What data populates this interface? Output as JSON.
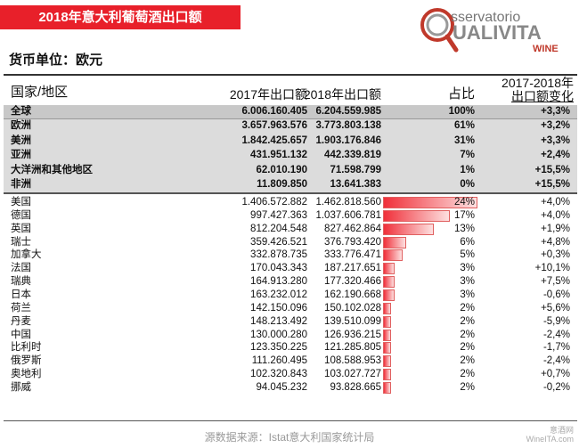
{
  "title": "2018年意大利葡萄酒出口额",
  "logo": {
    "line1": "sservatorio",
    "line2": "UALIVITA",
    "line3": "WINE",
    "accent": "#c0392b"
  },
  "unit": "货币单位：欧元",
  "headers": {
    "region": "国家/地区",
    "y2017": "2017年出口额",
    "y2018": "2018年出口额",
    "share": "占比",
    "change1": "2017-2018年",
    "change2": "出口额变化"
  },
  "regions": [
    {
      "name": "全球",
      "v2017": "6.006.160.405",
      "v2018": "6.204.559.985",
      "share": "100%",
      "change": "+3,3%"
    },
    {
      "name": "欧洲",
      "v2017": "3.657.963.576",
      "v2018": "3.773.803.138",
      "share": "61%",
      "change": "+3,2%"
    },
    {
      "name": "美洲",
      "v2017": "1.842.425.657",
      "v2018": "1.903.176.846",
      "share": "31%",
      "change": "+3,3%"
    },
    {
      "name": "亚洲",
      "v2017": "431.951.132",
      "v2018": "442.339.819",
      "share": "7%",
      "change": "+2,4%"
    },
    {
      "name": "大洋洲和其他地区",
      "v2017": "62.010.190",
      "v2018": "71.598.799",
      "share": "1%",
      "change": "+15,5%"
    },
    {
      "name": "非洲",
      "v2017": "11.809.850",
      "v2018": "13.641.383",
      "share": "0%",
      "change": "+15,5%"
    }
  ],
  "countries": [
    {
      "name": "美国",
      "v2017": "1.406.572.882",
      "v2018": "1.462.818.560",
      "share": "24%",
      "pct": 24,
      "change": "+4,0%"
    },
    {
      "name": "德国",
      "v2017": "997.427.363",
      "v2018": "1.037.606.781",
      "share": "17%",
      "pct": 17,
      "change": "+4,0%"
    },
    {
      "name": "英国",
      "v2017": "812.204.548",
      "v2018": "827.462.864",
      "share": "13%",
      "pct": 13,
      "change": "+1,9%"
    },
    {
      "name": "瑞士",
      "v2017": "359.426.521",
      "v2018": "376.793.420",
      "share": "6%",
      "pct": 6,
      "change": "+4,8%"
    },
    {
      "name": "加拿大",
      "v2017": "332.878.735",
      "v2018": "333.776.471",
      "share": "5%",
      "pct": 5,
      "change": "+0,3%"
    },
    {
      "name": "法国",
      "v2017": "170.043.343",
      "v2018": "187.217.651",
      "share": "3%",
      "pct": 3,
      "change": "+10,1%"
    },
    {
      "name": "瑞典",
      "v2017": "164.913.280",
      "v2018": "177.320.466",
      "share": "3%",
      "pct": 3,
      "change": "+7,5%"
    },
    {
      "name": "日本",
      "v2017": "163.232.012",
      "v2018": "162.190.668",
      "share": "3%",
      "pct": 3,
      "change": "-0,6%"
    },
    {
      "name": "荷兰",
      "v2017": "142.150.096",
      "v2018": "150.102.028",
      "share": "2%",
      "pct": 2,
      "change": "+5,6%"
    },
    {
      "name": "丹麦",
      "v2017": "148.213.492",
      "v2018": "139.510.099",
      "share": "2%",
      "pct": 2,
      "change": "-5,9%"
    },
    {
      "name": "中国",
      "v2017": "130.000.280",
      "v2018": "126.936.215",
      "share": "2%",
      "pct": 2,
      "change": "-2,4%"
    },
    {
      "name": "比利时",
      "v2017": "123.350.225",
      "v2018": "121.285.805",
      "share": "2%",
      "pct": 2,
      "change": "-1,7%"
    },
    {
      "name": "俄罗斯",
      "v2017": "111.260.495",
      "v2018": "108.588.953",
      "share": "2%",
      "pct": 2,
      "change": "-2,4%"
    },
    {
      "name": "奥地利",
      "v2017": "102.320.843",
      "v2018": "103.027.727",
      "share": "2%",
      "pct": 2,
      "change": "+0,7%"
    },
    {
      "name": "挪威",
      "v2017": "94.045.232",
      "v2018": "93.828.665",
      "share": "2%",
      "pct": 2,
      "change": "-0,2%"
    }
  ],
  "source": "源数据来源：Istat意大利国家统计局",
  "watermark": {
    "line1": "意酒网",
    "line2": "WineITA.com"
  }
}
